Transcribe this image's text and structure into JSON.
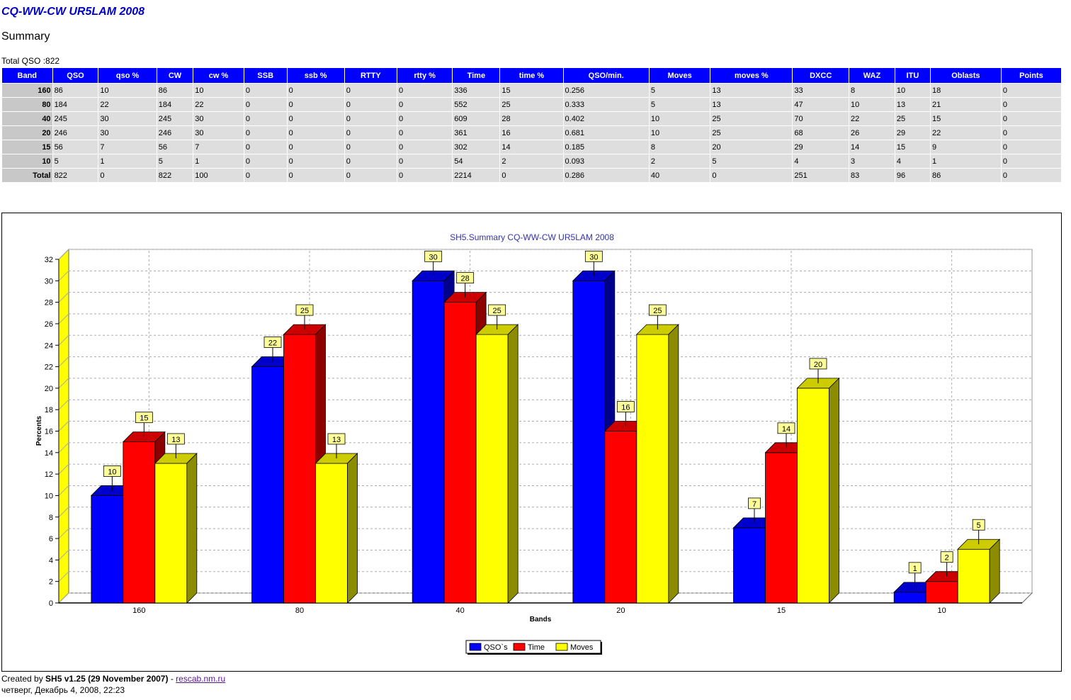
{
  "page": {
    "title": "CQ-WW-CW UR5LAM 2008",
    "subtitle": "Summary",
    "total_qso": "Total QSO :822"
  },
  "table": {
    "headers": [
      "Band",
      "QSO",
      "qso %",
      "CW",
      "cw %",
      "SSB",
      "ssb %",
      "RTTY",
      "rtty %",
      "Time",
      "time %",
      "QSO/min.",
      "Moves",
      "moves %",
      "DXCC",
      "WAZ",
      "ITU",
      "Oblasts",
      "Points"
    ],
    "rows": [
      [
        "160",
        "86",
        "10",
        "86",
        "10",
        "0",
        "0",
        "0",
        "0",
        "336",
        "15",
        "0.256",
        "5",
        "13",
        "33",
        "8",
        "10",
        "18",
        "0"
      ],
      [
        "80",
        "184",
        "22",
        "184",
        "22",
        "0",
        "0",
        "0",
        "0",
        "552",
        "25",
        "0.333",
        "5",
        "13",
        "47",
        "10",
        "13",
        "21",
        "0"
      ],
      [
        "40",
        "245",
        "30",
        "245",
        "30",
        "0",
        "0",
        "0",
        "0",
        "609",
        "28",
        "0.402",
        "10",
        "25",
        "70",
        "22",
        "25",
        "15",
        "0"
      ],
      [
        "20",
        "246",
        "30",
        "246",
        "30",
        "0",
        "0",
        "0",
        "0",
        "361",
        "16",
        "0.681",
        "10",
        "25",
        "68",
        "26",
        "29",
        "22",
        "0"
      ],
      [
        "15",
        "56",
        "7",
        "56",
        "7",
        "0",
        "0",
        "0",
        "0",
        "302",
        "14",
        "0.185",
        "8",
        "20",
        "29",
        "14",
        "15",
        "9",
        "0"
      ],
      [
        "10",
        "5",
        "1",
        "5",
        "1",
        "0",
        "0",
        "0",
        "0",
        "54",
        "2",
        "0.093",
        "2",
        "5",
        "4",
        "3",
        "4",
        "1",
        "0"
      ],
      [
        "Total",
        "822",
        "0",
        "822",
        "100",
        "0",
        "0",
        "0",
        "0",
        "2214",
        "0",
        "0.286",
        "40",
        "0",
        "251",
        "83",
        "96",
        "86",
        "0"
      ]
    ]
  },
  "chart_data": {
    "type": "bar",
    "title": "SH5.Summary CQ-WW-CW UR5LAM 2008",
    "xlabel": "Bands",
    "ylabel": "Percents",
    "ylim": [
      0,
      32
    ],
    "yticks": [
      0,
      2,
      4,
      6,
      8,
      10,
      12,
      14,
      16,
      18,
      20,
      22,
      24,
      26,
      28,
      30,
      32
    ],
    "categories": [
      "160",
      "80",
      "40",
      "20",
      "15",
      "10"
    ],
    "series": [
      {
        "name": "QSO`s",
        "values": [
          10,
          22,
          30,
          30,
          7,
          1
        ],
        "color": "#0000ff"
      },
      {
        "name": "Time",
        "values": [
          15,
          25,
          28,
          16,
          14,
          2
        ],
        "color": "#ff0000"
      },
      {
        "name": "Moves",
        "values": [
          13,
          13,
          25,
          25,
          20,
          5
        ],
        "color": "#ffff00"
      }
    ],
    "grid": true,
    "legend_position": "bottom"
  },
  "footer": {
    "created_prefix": "Created by ",
    "app": "SH5 v1.25 (29 November 2007)",
    "sep": " - ",
    "link": "rescab.nm.ru",
    "date": "четверг, Декабрь 4, 2008, 22:23"
  }
}
